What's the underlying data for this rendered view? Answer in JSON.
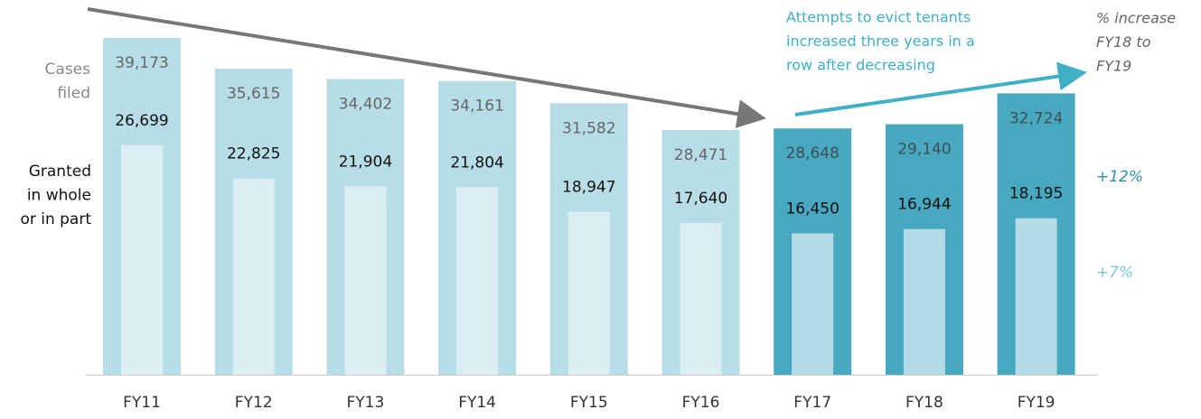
{
  "chart_data": {
    "type": "bar",
    "categories": [
      "FY11",
      "FY12",
      "FY13",
      "FY14",
      "FY15",
      "FY16",
      "FY17",
      "FY18",
      "FY19"
    ],
    "series": [
      {
        "name": [
          "Cases",
          "filed"
        ],
        "values": [
          39173,
          35615,
          34402,
          34161,
          31582,
          28471,
          28648,
          29140,
          32724
        ],
        "value_labels": [
          "39,173",
          "35,615",
          "34,402",
          "34,161",
          "31,582",
          "28,471",
          "28,648",
          "29,140",
          "32,724"
        ],
        "colors": [
          "#b7dde7",
          "#b7dde7",
          "#b7dde7",
          "#b7dde7",
          "#b7dde7",
          "#b7dde7",
          "#48a8bf",
          "#48a8bf",
          "#48a8bf"
        ]
      },
      {
        "name": [
          "Granted",
          "in whole",
          "or in part"
        ],
        "values": [
          26699,
          22825,
          21904,
          21804,
          18947,
          17640,
          16450,
          16944,
          18195
        ],
        "value_labels": [
          "26,699",
          "22,825",
          "21,904",
          "21,804",
          "18,947",
          "17,640",
          "16,450",
          "16,944",
          "18,195"
        ],
        "colors": [
          "#daeef4",
          "#daeef4",
          "#daeef4",
          "#daeef4",
          "#daeef4",
          "#daeef4",
          "#b5dbe6",
          "#b5dbe6",
          "#b5dbe6"
        ]
      }
    ],
    "annotations": [
      {
        "lines": [
          "Attempts to evict tenants",
          "increased three years in a",
          "row after decreasing"
        ]
      },
      {
        "lines": [
          "% increase",
          "FY18 to",
          "FY19"
        ]
      },
      {
        "lines": [
          "+12%"
        ]
      },
      {
        "lines": [
          "+7%"
        ]
      }
    ]
  }
}
